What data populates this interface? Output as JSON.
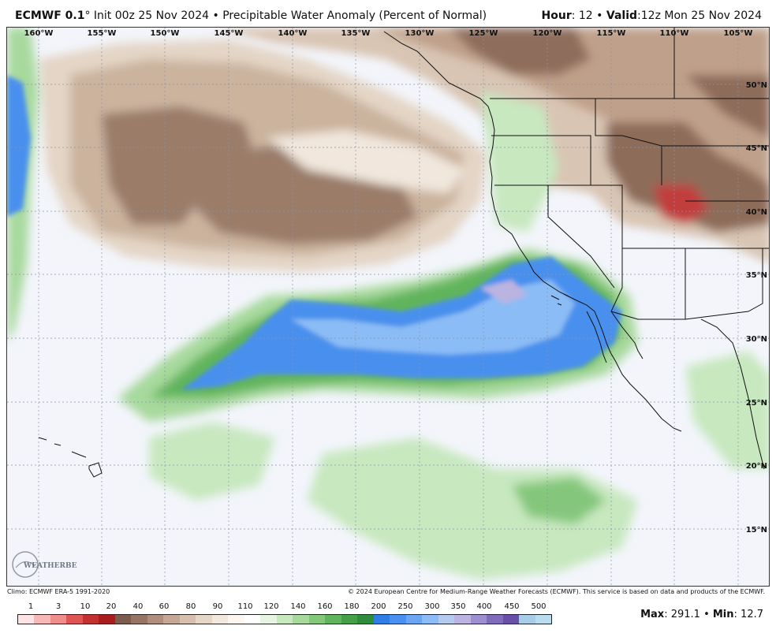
{
  "header": {
    "model": "ECMWF 0.1",
    "degree_mark": "°",
    "init_text": "Init 00z 25 Nov 2024",
    "separator": "•",
    "product": "Precipitable Water Anomaly (Percent of Normal)",
    "hour_label": "Hour",
    "hour_value": ": 12",
    "valid_label": "Valid",
    "valid_value": ":12z Mon 25 Nov 2024"
  },
  "map": {
    "lon_labels": [
      "160°W",
      "155°W",
      "150°W",
      "145°W",
      "140°W",
      "135°W",
      "130°W",
      "125°W",
      "120°W",
      "115°W",
      "110°W",
      "105°W"
    ],
    "lat_labels": [
      "50°N",
      "45°N",
      "40°N",
      "35°N",
      "30°N",
      "25°N",
      "20°N",
      "15°N"
    ]
  },
  "footer": {
    "climo": "Climo: ECMWF ERA-5 1991-2020",
    "copyright": "© 2024 European Centre for Medium-Range Weather Forecasts (ECMWF). This service is based on data and products of the ECMWF."
  },
  "legend": {
    "labels": [
      "1",
      "3",
      "10",
      "20",
      "40",
      "60",
      "80",
      "90",
      "110",
      "120",
      "140",
      "160",
      "180",
      "200",
      "250",
      "300",
      "350",
      "400",
      "450",
      "500"
    ],
    "colors": [
      "#fde3e3",
      "#f8b8b8",
      "#ef8c8c",
      "#dd5555",
      "#c23030",
      "#a81d1d",
      "#7c5c4e",
      "#957566",
      "#ae8f7e",
      "#c4a794",
      "#d6bfae",
      "#e6d6c8",
      "#f2e8dd",
      "#fbf6ef",
      "#ffffff",
      "#e6f4e1",
      "#c8e8c0",
      "#a7d99d",
      "#84c77b",
      "#60b45b",
      "#43a046",
      "#2f8c3c",
      "#2f7ee6",
      "#4a90ee",
      "#6aa6f2",
      "#8bbcf5",
      "#b5cbee",
      "#bbb4e0",
      "#9d8fcf",
      "#7f6cbb",
      "#6a4fa6",
      "#a8cde6",
      "#b9dcef"
    ],
    "max_label": "Max",
    "max_value": ": 291.1",
    "min_label": "Min",
    "min_value": ": 12.7"
  },
  "logo": {
    "text": "WEATHERBELL"
  }
}
